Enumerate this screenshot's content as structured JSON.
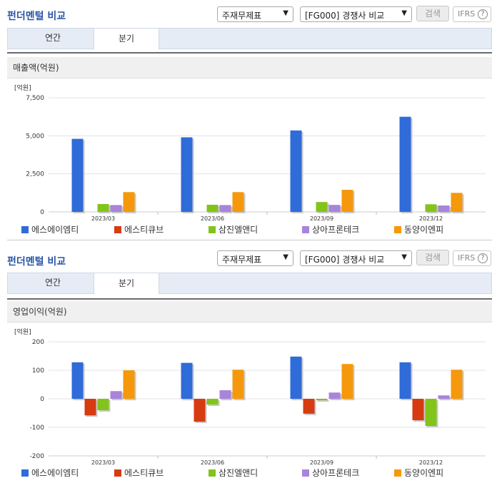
{
  "title": "펀더멘털 비교",
  "controls": {
    "select1": "주재무제표",
    "select2": "[FG000] 경쟁사 비교",
    "search": "검색",
    "ifrs": "IFRS",
    "help": "?"
  },
  "tabs": [
    "연간",
    "분기"
  ],
  "active_tab": 1,
  "colors": [
    "#2f6bd9",
    "#d63b11",
    "#82c41a",
    "#a884da",
    "#f5980c"
  ],
  "chart_data": [
    {
      "type": "bar",
      "title": "매출액(억원)",
      "unit_label": "[억원]",
      "categories": [
        "2023/03",
        "2023/06",
        "2023/09",
        "2023/12"
      ],
      "ylim": [
        0,
        7500
      ],
      "yticks": [
        0,
        2500,
        5000,
        7500
      ],
      "ytick_labels": [
        "0",
        "2,500",
        "5,000",
        "7,500"
      ],
      "legend_position": "bottom",
      "grid": true,
      "series": [
        {
          "name": "에스에이엠티",
          "values": [
            4800,
            4900,
            5350,
            6250
          ]
        },
        {
          "name": "에스티큐브",
          "values": [
            0,
            0,
            0,
            0
          ]
        },
        {
          "name": "삼진엘앤디",
          "values": [
            520,
            470,
            650,
            500
          ]
        },
        {
          "name": "상아프론테크",
          "values": [
            450,
            450,
            460,
            420
          ]
        },
        {
          "name": "동양이엔피",
          "values": [
            1300,
            1300,
            1450,
            1250
          ]
        }
      ]
    },
    {
      "type": "bar",
      "title": "영업이익(억원)",
      "unit_label": "[억원]",
      "categories": [
        "2023/03",
        "2023/06",
        "2023/09",
        "2023/12"
      ],
      "ylim": [
        -200,
        200
      ],
      "yticks": [
        -200,
        -100,
        0,
        100,
        200
      ],
      "ytick_labels": [
        "-200",
        "-100",
        "0",
        "100",
        "200"
      ],
      "legend_position": "bottom",
      "grid": true,
      "series": [
        {
          "name": "에스에이엠티",
          "values": [
            128,
            126,
            148,
            128
          ]
        },
        {
          "name": "에스티큐브",
          "values": [
            -58,
            -80,
            -52,
            -75
          ]
        },
        {
          "name": "삼진엘앤디",
          "values": [
            -40,
            -20,
            -5,
            -95
          ]
        },
        {
          "name": "상아프론테크",
          "values": [
            27,
            30,
            22,
            12
          ]
        },
        {
          "name": "동양이엔피",
          "values": [
            100,
            102,
            122,
            102
          ]
        }
      ]
    }
  ]
}
